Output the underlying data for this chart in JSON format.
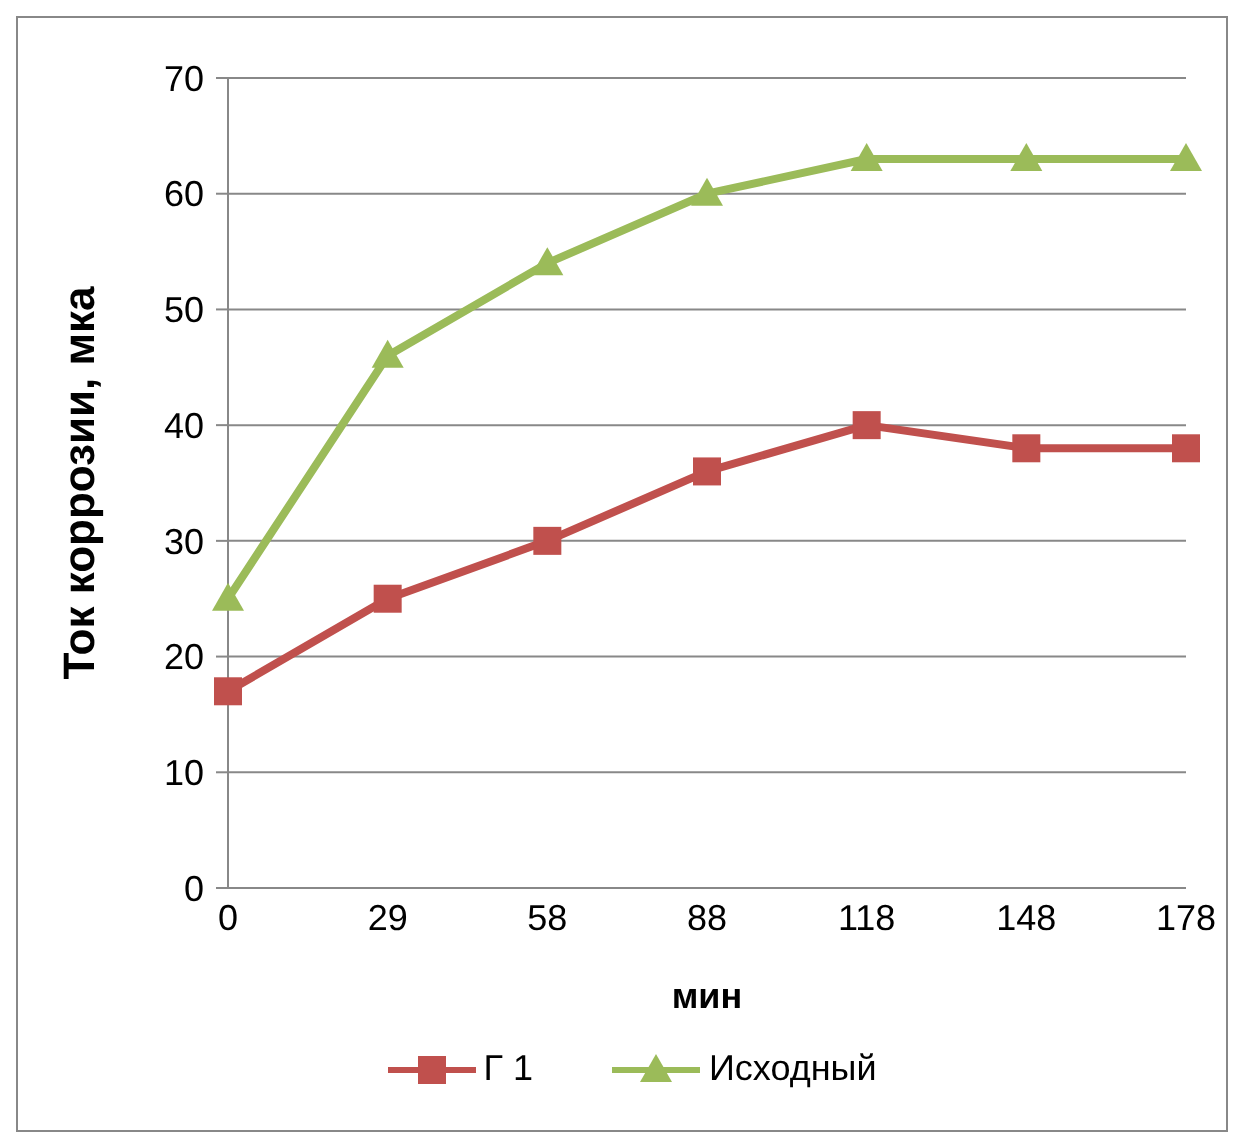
{
  "chart_data": {
    "type": "line",
    "xlabel": "мин",
    "ylabel": "Ток коррозии, мка",
    "categories": [
      "0",
      "29",
      "58",
      "88",
      "118",
      "148",
      "178"
    ],
    "series": [
      {
        "name": "Г 1",
        "color": "#c0504d",
        "marker": "square",
        "values": [
          17,
          25,
          30,
          36,
          40,
          38,
          38
        ]
      },
      {
        "name": "Исходный",
        "color": "#9bbb59",
        "marker": "triangle",
        "values": [
          25,
          46,
          54,
          60,
          63,
          63,
          63
        ]
      }
    ],
    "ylim": [
      0,
      70
    ],
    "yticks": [
      0,
      10,
      20,
      30,
      40,
      50,
      60,
      70
    ],
    "grid": "y",
    "legend": "bottom"
  }
}
